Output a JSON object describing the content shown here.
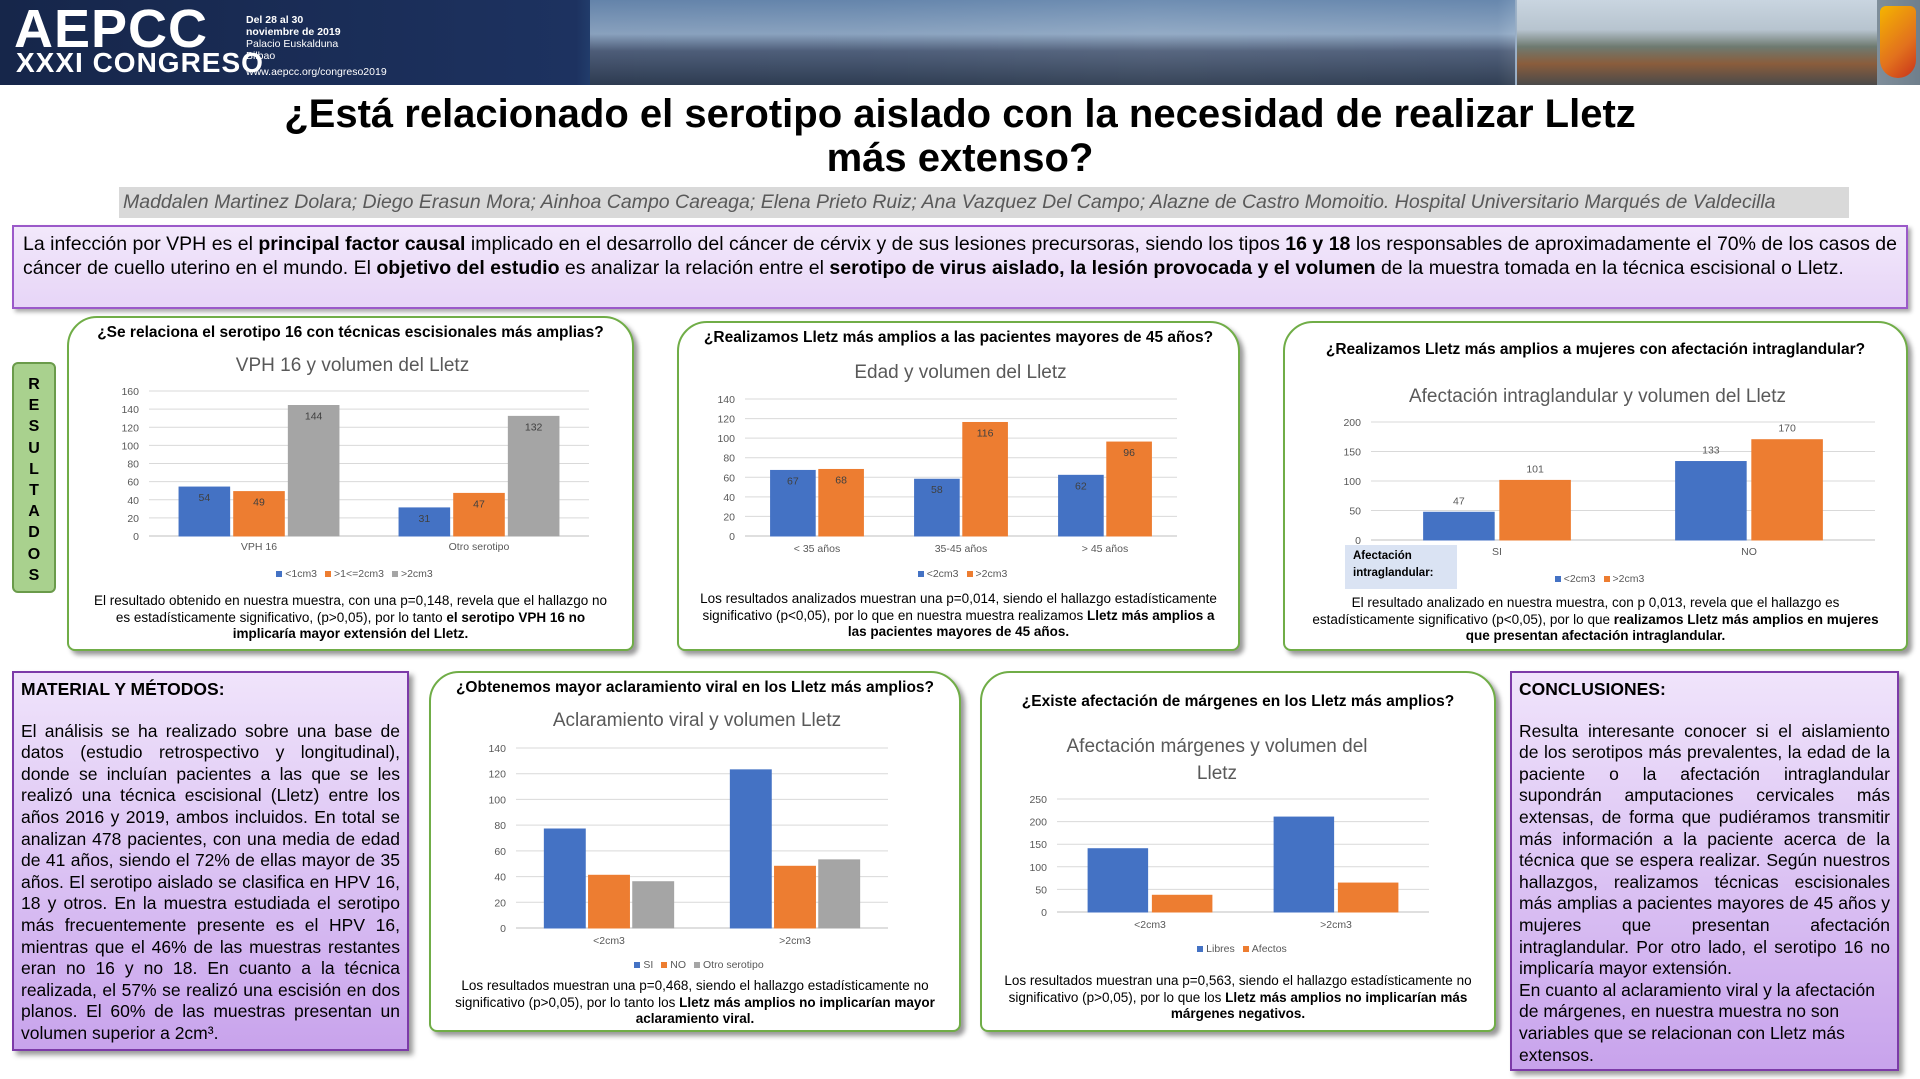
{
  "header": {
    "logo": "AEPCC",
    "edition": "XXXI CONGRESO",
    "dates": [
      "Del 28 al 30",
      "noviembre de 2019"
    ],
    "venue": "Palacio Euskalduna",
    "city": "Bilbao",
    "url": "www.aepcc.org/congreso2019"
  },
  "title": "¿Está relacionado el serotipo aislado con la necesidad de realizar Lletz más extenso?",
  "authors": "Maddalen Martinez Dolara; Diego Erasun Mora; Ainhoa Campo Careaga; Elena Prieto Ruiz; Ana Vazquez Del Campo; Alazne de Castro Momoitio. Hospital Universitario Marqués de Valdecilla",
  "intro": [
    "La infección por VPH es el ",
    "principal factor causal",
    " implicado en el desarrollo del cáncer de cérvix y de sus lesiones precursoras, siendo los tipos ",
    "16 y 18",
    " los responsables de aproximadamente el 70% de los casos de cáncer de cuello uterino en el mundo. El ",
    "objetivo del estudio",
    " es analizar la relación entre el ",
    "serotipo de virus aislado, la lesión provocada y el volumen",
    " de la muestra tomada en la técnica escisional o Lletz."
  ],
  "results_label": "RESULTADOS",
  "chart_data": [
    {
      "type": "bar",
      "question": "¿Se relaciona el serotipo 16 con técnicas escisionales más amplias?",
      "title": "VPH 16 y volumen del Lletz",
      "categories": [
        "VPH 16",
        "Otro serotipo"
      ],
      "series": [
        {
          "name": "<1cm3",
          "color": "#4472c4",
          "values": [
            54,
            31
          ]
        },
        {
          "name": ">1<=2cm3",
          "color": "#ed7d31",
          "values": [
            49,
            47
          ]
        },
        {
          "name": ">2cm3",
          "color": "#a5a5a5",
          "values": [
            144,
            132
          ]
        }
      ],
      "ylim": [
        0,
        160
      ],
      "yticks": [
        0,
        20,
        40,
        60,
        80,
        100,
        120,
        140,
        160
      ],
      "grid": true,
      "data_labels": "inside_end",
      "finding": [
        "El resultado obtenido en nuestra muestra, con una p=0,148, revela que el hallazgo no es estadísticamente significativo, (p>0,05), por lo tanto ",
        "el serotipo VPH 16 no implicaría mayor extensión del Lletz."
      ]
    },
    {
      "type": "bar",
      "question": "¿Realizamos Lletz más amplios a las pacientes mayores de 45 años?",
      "title": "Edad y volumen del Lletz",
      "categories": [
        "< 35 años",
        "35-45 años",
        "> 45 años"
      ],
      "series": [
        {
          "name": "<2cm3",
          "color": "#4472c4",
          "values": [
            67,
            58,
            62
          ]
        },
        {
          "name": ">2cm3",
          "color": "#ed7d31",
          "values": [
            68,
            116,
            96
          ]
        }
      ],
      "ylim": [
        0,
        140
      ],
      "yticks": [
        0,
        20,
        40,
        60,
        80,
        100,
        120,
        140
      ],
      "grid": true,
      "data_labels": "inside_end",
      "finding": [
        "Los resultados analizados muestran una p=0,014, siendo el hallazgo estadísticamente significativo (p<0,05), por lo que en nuestra muestra realizamos ",
        "Lletz más amplios a las pacientes mayores de 45 años."
      ]
    },
    {
      "type": "bar",
      "question": "¿Realizamos Lletz más amplios a mujeres con afectación intraglandular?",
      "title": "Afectación intraglandular y volumen del Lletz",
      "categories": [
        "SI",
        "NO"
      ],
      "series": [
        {
          "name": "<2cm3",
          "color": "#4472c4",
          "values": [
            47,
            133
          ]
        },
        {
          "name": ">2cm3",
          "color": "#ed7d31",
          "values": [
            101,
            170
          ]
        }
      ],
      "ylim": [
        0,
        200
      ],
      "yticks": [
        0,
        50,
        100,
        150,
        200
      ],
      "grid": true,
      "data_labels": "outside_end",
      "annotation": "Afectación intraglandular:",
      "finding": [
        "El resultado analizado en nuestra muestra, con p 0,013, revela que el hallazgo es estadísticamente significativo (p<0,05), por lo que ",
        "realizamos Lletz más amplios en mujeres que presentan afectación intraglandular."
      ]
    },
    {
      "type": "bar",
      "question": "¿Obtenemos mayor aclaramiento viral en los Lletz más amplios?",
      "title": "Aclaramiento viral y volumen Lletz",
      "categories": [
        "<2cm3",
        ">2cm3"
      ],
      "series": [
        {
          "name": "SI",
          "color": "#4472c4",
          "values": [
            77,
            123
          ]
        },
        {
          "name": "NO",
          "color": "#ed7d31",
          "values": [
            41,
            48
          ]
        },
        {
          "name": "Otro serotipo",
          "color": "#a5a5a5",
          "values": [
            36,
            53
          ]
        }
      ],
      "ylim": [
        0,
        140
      ],
      "yticks": [
        0,
        20,
        40,
        60,
        80,
        100,
        120,
        140
      ],
      "grid": true,
      "finding": [
        "Los resultados muestran una p=0,468, siendo el hallazgo estadísticamente no significativo (p>0,05), por lo tanto los ",
        "Lletz más amplios no implicarían mayor aclaramiento viral."
      ]
    },
    {
      "type": "bar",
      "question": "¿Existe afectación de márgenes en los Lletz más amplios?",
      "title": "Afectación márgenes y volumen del Lletz",
      "categories": [
        "<2cm3",
        ">2cm3"
      ],
      "series": [
        {
          "name": "Libres",
          "color": "#4472c4",
          "values": [
            140,
            210
          ]
        },
        {
          "name": "Afectos",
          "color": "#ed7d31",
          "values": [
            37,
            64
          ]
        }
      ],
      "ylim": [
        0,
        250
      ],
      "yticks": [
        0,
        50,
        100,
        150,
        200,
        250
      ],
      "grid": true,
      "finding": [
        "Los resultados muestran una p=0,563, siendo el hallazgo estadísticamente no significativo (p>0,05), por lo que los ",
        "Lletz más amplios no implicarían más márgenes negativos."
      ]
    }
  ],
  "methods": {
    "heading": "MATERIAL Y MÉTODOS:",
    "body": "El análisis se ha realizado sobre una base de datos (estudio retrospectivo y longitudinal), donde se incluían pacientes a las que se les realizó una técnica escisional (Lletz) entre los años 2016 y 2019, ambos incluidos. En total se analizan 478 pacientes, con una media de edad de 41 años, siendo el 72% de ellas mayor de 35 años. El serotipo aislado se clasifica en HPV 16, 18 y otros. En la muestra estudiada el serotipo más frecuentemente presente es el HPV 16, mientras que el 46% de las muestras restantes eran no 16 y no 18. En cuanto a la técnica realizada, el 57% se realizó una escisión en dos planos. El 60% de las muestras presentan un volumen superior a 2cm³."
  },
  "conclusions": {
    "heading": "CONCLUSIONES:",
    "body": [
      "Resulta interesante conocer si el aislamiento de los serotipos más prevalentes, la edad de la paciente o la afectación intraglandular supondrán amputaciones cervicales más extensas, de forma que pudiéramos transmitir más información a la paciente acerca de la técnica que se espera realizar. Según nuestros hallazgos, realizamos técnicas escisionales más amplias a pacientes mayores de 45 años y mujeres que presentan afectación intraglandular. Por otro lado, el serotipo 16 no implicaría mayor extensión.",
      "En cuanto al aclaramiento viral y la afectación de márgenes, en nuestra muestra no son variables que se relacionan con Lletz más extensos."
    ]
  }
}
